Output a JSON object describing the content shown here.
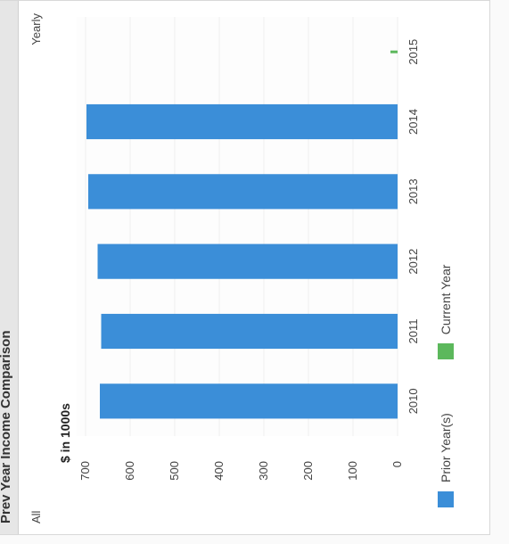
{
  "panel": {
    "title": "Prev Year Income Comparison",
    "filter_left": "All",
    "filter_right": "Yearly"
  },
  "colors": {
    "prior": "#3b8ed8",
    "current": "#5cb85c",
    "grid": "#eeeeee"
  },
  "chart_data": {
    "type": "bar",
    "orientation": "vertical",
    "title": "",
    "unit_label": "$ in 1000s",
    "xlabel": "",
    "ylabel": "",
    "categories": [
      "2010",
      "2011",
      "2012",
      "2013",
      "2014",
      "2015"
    ],
    "yticks": [
      0,
      100,
      200,
      300,
      400,
      500,
      600,
      700
    ],
    "ylim": [
      0,
      720
    ],
    "series": [
      {
        "name": "Prior Year(s)",
        "color": "#3b8ed8",
        "values": [
          668,
          665,
          673,
          694,
          698,
          null
        ]
      },
      {
        "name": "Current Year",
        "color": "#5cb85c",
        "values": [
          null,
          null,
          null,
          null,
          null,
          16
        ]
      }
    ],
    "grid": true,
    "legend": "bottom"
  }
}
